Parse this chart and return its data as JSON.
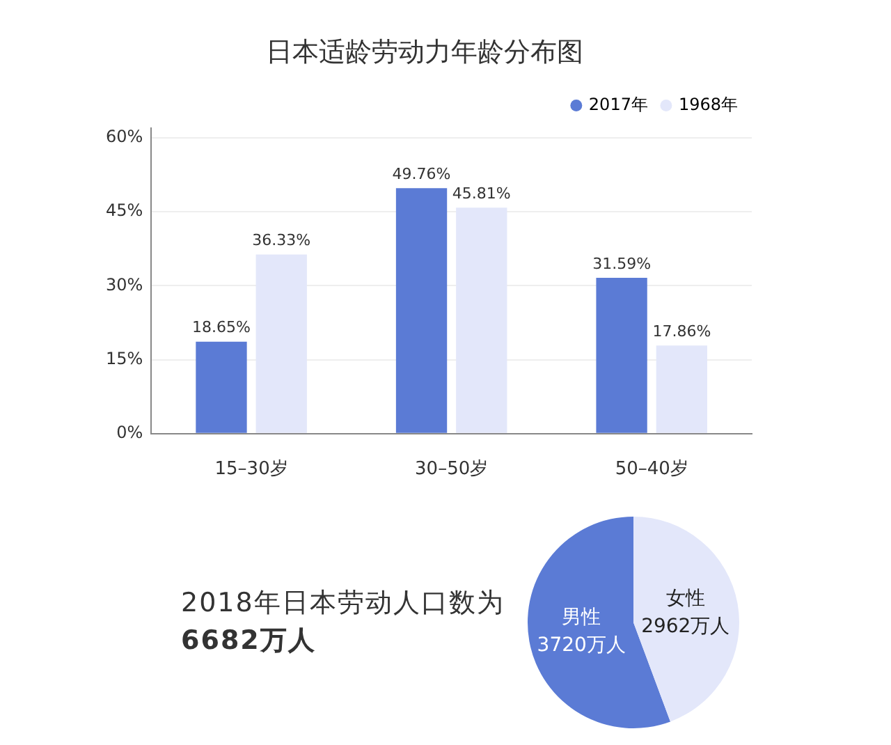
{
  "chart_data": [
    {
      "type": "bar",
      "title": "日本适龄劳动力年龄分布图",
      "categories": [
        "15–30岁",
        "30–50岁",
        "50–40岁"
      ],
      "series": [
        {
          "name": "2017年",
          "color": "#5b7bd5",
          "values": [
            18.65,
            49.76,
            31.59
          ],
          "value_labels": [
            "18.65%",
            "49.76%",
            "31.59%"
          ]
        },
        {
          "name": "1968年",
          "color": "#e3e7fa",
          "values": [
            36.33,
            45.81,
            17.86
          ],
          "value_labels": [
            "36.33%",
            "45.81%",
            "17.86%"
          ]
        }
      ],
      "ylim": [
        0,
        62
      ],
      "yticks": [
        {
          "value": 0,
          "label": "0%"
        },
        {
          "value": 15,
          "label": "15%"
        },
        {
          "value": 30,
          "label": "30%"
        },
        {
          "value": 45,
          "label": "45%"
        },
        {
          "value": 60,
          "label": "60%"
        }
      ],
      "grid": "y",
      "legend": "top right"
    },
    {
      "type": "pie",
      "annotations": [
        "2018年日本劳动人口数为",
        "6682万人"
      ],
      "categories": [
        "男性",
        "女性"
      ],
      "values": [
        3720,
        2962
      ],
      "colors": [
        "#5b7bd5",
        "#e3e7fa"
      ],
      "value_labels": [
        "3720万人",
        "2962万人"
      ]
    }
  ]
}
